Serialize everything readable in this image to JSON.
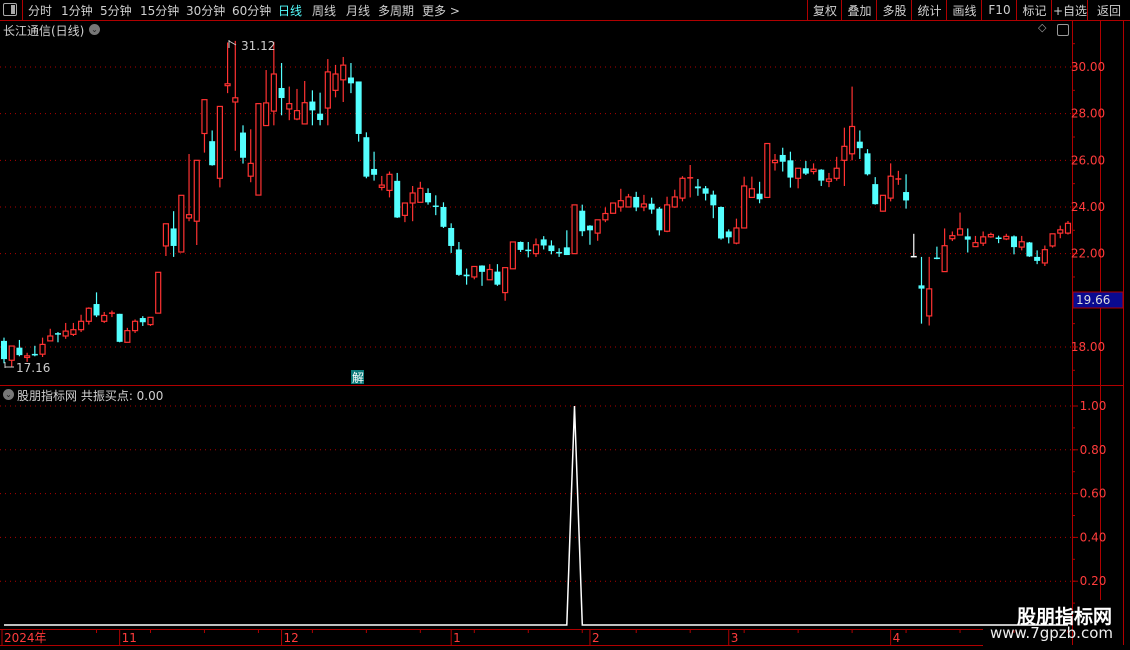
{
  "toolbar": {
    "left_items": [
      {
        "label": "分时",
        "active": false
      },
      {
        "label": "1分钟",
        "active": false
      },
      {
        "label": "5分钟",
        "active": false
      },
      {
        "label": "15分钟",
        "active": false
      },
      {
        "label": "30分钟",
        "active": false
      },
      {
        "label": "60分钟",
        "active": false
      },
      {
        "label": "日线",
        "active": true
      },
      {
        "label": "周线",
        "active": false
      },
      {
        "label": "月线",
        "active": false
      },
      {
        "label": "多周期",
        "active": false
      },
      {
        "label": "更多 >",
        "active": false
      }
    ],
    "right_buttons": [
      "复权",
      "叠加",
      "多股",
      "统计",
      "画线",
      "F10",
      "标记",
      "+自选",
      "返回"
    ]
  },
  "main_panel": {
    "title": "长江通信(日线)",
    "current_price": "19.66",
    "max_label": "31.12",
    "min_label": "17.16",
    "event_marker": "解"
  },
  "indicator_panel": {
    "title": "股朋指标网 共振买点: 0.00"
  },
  "watermark": {
    "name": "股朋指标网",
    "url": "www.7gpzb.com"
  },
  "colors": {
    "up": "#ff3232",
    "down": "#54ffff",
    "flat": "#ffffff",
    "grid": "#b00000",
    "axis_text": "#ff3c3c",
    "price_box": "#0a0a90",
    "indicator": "#ffffff",
    "active_tab": "#54ffff"
  },
  "chart_data": [
    {
      "type": "candlestick",
      "title": "长江通信(日线)",
      "y_ticks": [
        "30.00",
        "28.00",
        "26.00",
        "24.00",
        "22.00",
        "18.00"
      ],
      "ylim": [
        16.7,
        31.5
      ],
      "grid": true,
      "x_ticks": [
        {
          "label": "2024年",
          "index": 0
        },
        {
          "label": "11",
          "index": 15
        },
        {
          "label": "12",
          "index": 36
        },
        {
          "label": "1",
          "index": 58
        },
        {
          "label": "2",
          "index": 76
        },
        {
          "label": "3",
          "index": 94
        },
        {
          "label": "4",
          "index": 115
        }
      ],
      "ohlc": [
        [
          18.26,
          18.4,
          17.3,
          17.48
        ],
        [
          17.43,
          18.05,
          17.16,
          18.04
        ],
        [
          17.97,
          18.3,
          17.6,
          17.65
        ],
        [
          17.55,
          17.75,
          17.36,
          17.62
        ],
        [
          17.67,
          18.05,
          17.6,
          17.64
        ],
        [
          17.69,
          18.4,
          17.57,
          18.11
        ],
        [
          18.26,
          18.78,
          18.26,
          18.47
        ],
        [
          18.56,
          18.64,
          18.2,
          18.5
        ],
        [
          18.47,
          19.03,
          18.35,
          18.68
        ],
        [
          18.54,
          19.03,
          18.47,
          18.74
        ],
        [
          18.74,
          19.38,
          18.64,
          19.1
        ],
        [
          19.1,
          19.7,
          18.96,
          19.66
        ],
        [
          19.84,
          20.34,
          19.28,
          19.35
        ],
        [
          19.1,
          19.5,
          19.03,
          19.35
        ],
        [
          19.43,
          19.56,
          19.28,
          19.45
        ],
        [
          19.42,
          19.42,
          18.2,
          18.22
        ],
        [
          18.2,
          18.82,
          18.2,
          18.7
        ],
        [
          18.7,
          19.18,
          18.6,
          19.1
        ],
        [
          19.24,
          19.32,
          18.9,
          19.06
        ],
        [
          18.96,
          19.27,
          18.9,
          19.27
        ],
        [
          19.45,
          21.2,
          19.45,
          21.2
        ],
        [
          22.33,
          23.28,
          21.9,
          23.28
        ],
        [
          23.08,
          23.82,
          21.86,
          22.33
        ],
        [
          22.07,
          24.5,
          22.07,
          24.5
        ],
        [
          23.53,
          26.27,
          23.39,
          23.67
        ],
        [
          23.39,
          26.0,
          22.37,
          26.0
        ],
        [
          27.15,
          28.6,
          26.33,
          28.6
        ],
        [
          26.82,
          27.28,
          25.77,
          25.79
        ],
        [
          25.23,
          28.31,
          24.84,
          28.31
        ],
        [
          29.2,
          31.05,
          28.88,
          29.28
        ],
        [
          28.5,
          31.12,
          26.41,
          28.68
        ],
        [
          27.19,
          27.5,
          25.86,
          26.11
        ],
        [
          25.32,
          27.33,
          25.06,
          25.87
        ],
        [
          24.51,
          28.43,
          24.51,
          28.43
        ],
        [
          27.49,
          29.87,
          27.49,
          28.46
        ],
        [
          28.11,
          31.08,
          27.5,
          29.7
        ],
        [
          29.1,
          30.17,
          27.93,
          28.67
        ],
        [
          28.2,
          29.16,
          27.72,
          28.43
        ],
        [
          27.77,
          29.06,
          27.72,
          28.13
        ],
        [
          27.56,
          29.4,
          27.56,
          28.47
        ],
        [
          28.52,
          29.0,
          27.5,
          28.14
        ],
        [
          28.0,
          28.9,
          27.5,
          27.73
        ],
        [
          28.24,
          30.34,
          27.5,
          29.79
        ],
        [
          29.0,
          30.09,
          28.7,
          29.7
        ],
        [
          29.45,
          30.43,
          28.5,
          30.08
        ],
        [
          29.55,
          30.17,
          28.88,
          29.3
        ],
        [
          29.38,
          29.38,
          26.8,
          27.13
        ],
        [
          26.99,
          27.2,
          25.23,
          25.3
        ],
        [
          25.63,
          26.37,
          25.13,
          25.38
        ],
        [
          24.84,
          25.33,
          24.71,
          24.94
        ],
        [
          24.71,
          25.52,
          24.41,
          25.4
        ],
        [
          25.12,
          25.46,
          23.53,
          23.55
        ],
        [
          23.64,
          24.17,
          23.35,
          24.17
        ],
        [
          24.17,
          24.9,
          23.39,
          24.6
        ],
        [
          24.2,
          25.08,
          24.2,
          24.8
        ],
        [
          24.6,
          24.8,
          24.1,
          24.2
        ],
        [
          24.03,
          24.5,
          23.65,
          23.98
        ],
        [
          24.0,
          24.2,
          23.1,
          23.15
        ],
        [
          23.1,
          23.3,
          22.03,
          22.33
        ],
        [
          22.18,
          22.5,
          21.05,
          21.09
        ],
        [
          21.1,
          21.36,
          20.67,
          21.03
        ],
        [
          21.0,
          21.45,
          20.9,
          21.45
        ],
        [
          21.49,
          21.5,
          20.62,
          21.22
        ],
        [
          20.88,
          21.55,
          20.88,
          21.32
        ],
        [
          21.23,
          21.55,
          20.62,
          20.67
        ],
        [
          20.33,
          21.4,
          19.98,
          21.4
        ],
        [
          21.35,
          22.5,
          21.35,
          22.5
        ],
        [
          22.5,
          22.52,
          22.07,
          22.16
        ],
        [
          22.14,
          22.5,
          21.84,
          22.11
        ],
        [
          22.0,
          22.65,
          21.86,
          22.38
        ],
        [
          22.61,
          22.75,
          22.18,
          22.35
        ],
        [
          22.35,
          22.57,
          21.97,
          22.11
        ],
        [
          22.04,
          22.23,
          21.86,
          21.99
        ],
        [
          22.27,
          23.0,
          21.94,
          21.94
        ],
        [
          22.0,
          24.1,
          22.0,
          24.09
        ],
        [
          23.84,
          24.1,
          22.75,
          22.96
        ],
        [
          23.2,
          23.22,
          22.38,
          23.0
        ],
        [
          22.88,
          23.45,
          22.55,
          23.45
        ],
        [
          23.45,
          23.98,
          23.35,
          23.72
        ],
        [
          23.73,
          24.17,
          23.73,
          24.17
        ],
        [
          24.0,
          24.78,
          23.8,
          24.27
        ],
        [
          24.0,
          24.56,
          24.0,
          24.43
        ],
        [
          24.43,
          24.65,
          23.82,
          23.98
        ],
        [
          24.0,
          24.52,
          23.82,
          24.13
        ],
        [
          24.14,
          24.4,
          23.71,
          23.89
        ],
        [
          23.93,
          24.0,
          22.78,
          23.0
        ],
        [
          22.96,
          24.44,
          22.92,
          24.09
        ],
        [
          24.0,
          24.74,
          23.96,
          24.43
        ],
        [
          24.38,
          25.32,
          24.24,
          25.23
        ],
        [
          25.22,
          25.8,
          24.41,
          25.25
        ],
        [
          24.88,
          25.2,
          24.48,
          24.8
        ],
        [
          24.8,
          24.9,
          24.28,
          24.57
        ],
        [
          24.53,
          24.7,
          23.52,
          24.07
        ],
        [
          24.0,
          24.02,
          22.6,
          22.65
        ],
        [
          22.95,
          23.04,
          22.44,
          22.7
        ],
        [
          22.45,
          23.5,
          22.4,
          23.1
        ],
        [
          23.1,
          25.3,
          23.1,
          24.9
        ],
        [
          24.41,
          25.3,
          24.41,
          24.78
        ],
        [
          24.57,
          25.08,
          24.16,
          24.33
        ],
        [
          24.41,
          26.72,
          24.41,
          26.72
        ],
        [
          25.9,
          26.27,
          25.56,
          26.0
        ],
        [
          26.23,
          26.54,
          25.52,
          25.94
        ],
        [
          26.0,
          26.37,
          24.83,
          25.26
        ],
        [
          25.23,
          25.66,
          24.8,
          25.66
        ],
        [
          25.66,
          25.97,
          25.37,
          25.43
        ],
        [
          25.52,
          25.87,
          25.4,
          25.62
        ],
        [
          25.6,
          25.62,
          24.9,
          25.13
        ],
        [
          25.1,
          25.46,
          24.85,
          25.2
        ],
        [
          25.23,
          26.15,
          25.13,
          25.66
        ],
        [
          26.0,
          27.4,
          24.9,
          26.6
        ],
        [
          26.28,
          29.16,
          26.0,
          27.45
        ],
        [
          26.8,
          27.28,
          26.06,
          26.52
        ],
        [
          26.3,
          26.48,
          25.35,
          25.4
        ],
        [
          24.98,
          25.28,
          24.1,
          24.12
        ],
        [
          23.82,
          24.5,
          23.8,
          24.5
        ],
        [
          24.38,
          25.87,
          24.24,
          25.32
        ],
        [
          25.17,
          25.55,
          24.95,
          25.2
        ],
        [
          24.64,
          25.4,
          23.93,
          24.28
        ],
        [
          21.87,
          22.85,
          21.87,
          21.87
        ],
        [
          20.64,
          21.86,
          19.0,
          20.5
        ],
        [
          19.33,
          21.86,
          18.92,
          20.49
        ],
        [
          21.8,
          22.3,
          21.76,
          21.78
        ],
        [
          21.23,
          23.08,
          21.23,
          22.34
        ],
        [
          22.64,
          22.95,
          22.54,
          22.77
        ],
        [
          22.8,
          23.76,
          22.8,
          23.06
        ],
        [
          22.74,
          23.08,
          22.05,
          22.6
        ],
        [
          22.3,
          22.76,
          22.3,
          22.47
        ],
        [
          22.45,
          22.95,
          22.33,
          22.72
        ],
        [
          22.72,
          22.9,
          22.68,
          22.82
        ],
        [
          22.66,
          22.77,
          22.45,
          22.64
        ],
        [
          22.63,
          22.85,
          22.58,
          22.74
        ],
        [
          22.74,
          22.78,
          21.97,
          22.28
        ],
        [
          22.28,
          22.76,
          22.14,
          22.51
        ],
        [
          22.48,
          22.5,
          21.86,
          21.88
        ],
        [
          21.86,
          22.14,
          21.55,
          21.69
        ],
        [
          21.6,
          22.35,
          21.47,
          22.17
        ],
        [
          22.33,
          22.85,
          22.26,
          22.85
        ],
        [
          22.88,
          23.2,
          22.66,
          23.02
        ],
        [
          22.88,
          23.4,
          22.82,
          23.3
        ]
      ]
    },
    {
      "type": "line",
      "title": "股朋指标网 共振买点: 0.00",
      "y_ticks": [
        "1.00",
        "0.80",
        "0.60",
        "0.40",
        "0.20"
      ],
      "ylim": [
        0,
        1.05
      ],
      "grid": true,
      "values": [
        0,
        0,
        0,
        0,
        0,
        0,
        0,
        0,
        0,
        0,
        0,
        0,
        0,
        0,
        0,
        0,
        0,
        0,
        0,
        0,
        0,
        0,
        0,
        0,
        0,
        0,
        0,
        0,
        0,
        0,
        0,
        0,
        0,
        0,
        0,
        0,
        0,
        0,
        0,
        0,
        0,
        0,
        0,
        0,
        0,
        0,
        0,
        0,
        0,
        0,
        0,
        0,
        0,
        0,
        0,
        0,
        0,
        0,
        0,
        0,
        0,
        0,
        0,
        0,
        0,
        0,
        0,
        0,
        0,
        0,
        0,
        0,
        0,
        0,
        1,
        0,
        0,
        0,
        0,
        0,
        0,
        0,
        0,
        0,
        0,
        0,
        0,
        0,
        0,
        0,
        0,
        0,
        0,
        0,
        0,
        0,
        0,
        0,
        0,
        0,
        0,
        0,
        0,
        0,
        0,
        0,
        0,
        0,
        0,
        0,
        0,
        0,
        0,
        0,
        0,
        0,
        0,
        0,
        0,
        0,
        0,
        0,
        0,
        0,
        0,
        0,
        0,
        0,
        0,
        0,
        0,
        0,
        0,
        0,
        0,
        0,
        0,
        0,
        0
      ]
    }
  ]
}
